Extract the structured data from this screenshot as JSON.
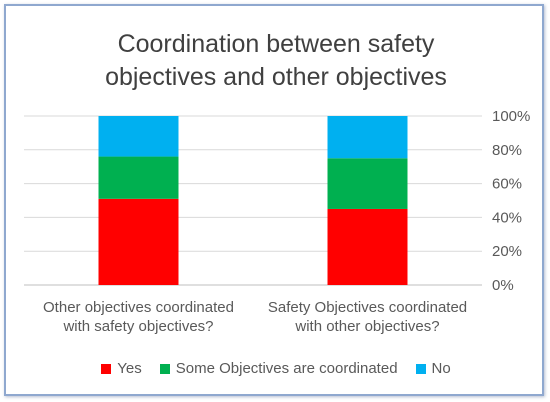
{
  "chart_data": {
    "type": "bar",
    "stacked": true,
    "percent_stacked": true,
    "title": [
      "Coordination between safety",
      "objectives and other objectives"
    ],
    "categories": [
      [
        "Other objectives coordinated",
        "with safety objectives?"
      ],
      [
        "Safety Objectives coordinated",
        "with other objectives?"
      ]
    ],
    "series": [
      {
        "name": "Yes",
        "color": "#ff0000",
        "values": [
          51,
          45
        ]
      },
      {
        "name": "Some Objectives are coordinated",
        "color": "#00b050",
        "values": [
          25,
          30
        ]
      },
      {
        "name": "No",
        "color": "#00b0f0",
        "values": [
          24,
          25
        ]
      }
    ],
    "y_ticks": [
      "0%",
      "20%",
      "40%",
      "60%",
      "80%",
      "100%"
    ],
    "ylim": [
      0,
      100
    ],
    "y_axis_side": "right",
    "grid": true,
    "legend_position": "bottom"
  }
}
